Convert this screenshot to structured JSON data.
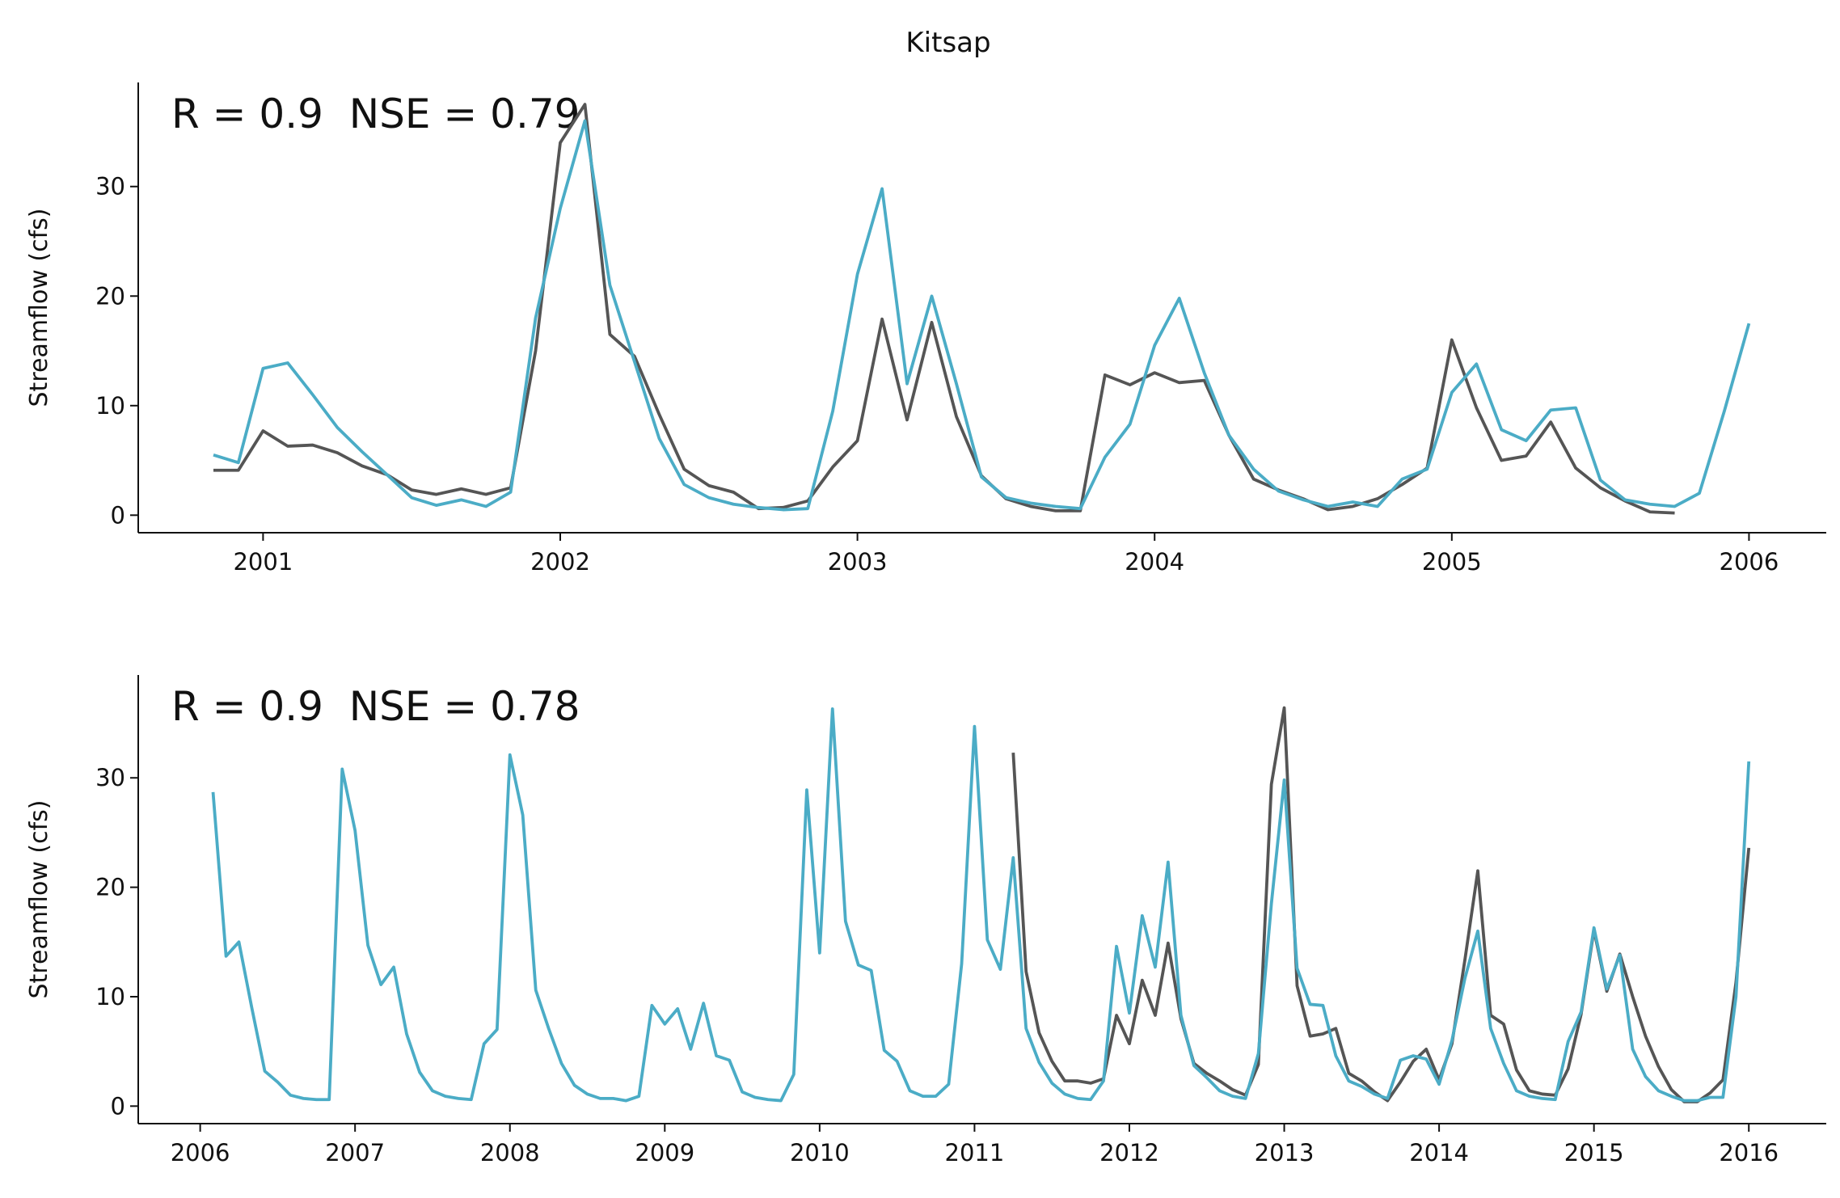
{
  "chart_data": [
    {
      "type": "line",
      "title": "Kitsap",
      "annotation": "R = 0.9  NSE = 0.79",
      "ylabel": "Streamflow (cfs)",
      "x": [
        2000.833,
        2000.917,
        2001,
        2001.083,
        2001.167,
        2001.25,
        2001.333,
        2001.417,
        2001.5,
        2001.583,
        2001.667,
        2001.75,
        2001.833,
        2001.917,
        2002,
        2002.083,
        2002.167,
        2002.25,
        2002.333,
        2002.417,
        2002.5,
        2002.583,
        2002.667,
        2002.75,
        2002.833,
        2002.917,
        2003,
        2003.083,
        2003.167,
        2003.25,
        2003.333,
        2003.417,
        2003.5,
        2003.583,
        2003.667,
        2003.75,
        2003.833,
        2003.917,
        2004,
        2004.083,
        2004.167,
        2004.25,
        2004.333,
        2004.417,
        2004.5,
        2004.583,
        2004.667,
        2004.75,
        2004.833,
        2004.917,
        2005,
        2005.083,
        2005.167,
        2005.25,
        2005.333,
        2005.417,
        2005.5,
        2005.583,
        2005.667,
        2005.75,
        2005.833,
        2005.917,
        2006
      ],
      "series": [
        {
          "color": "#555555",
          "values": [
            4.1,
            4.1,
            7.7,
            6.3,
            6.4,
            5.7,
            4.5,
            3.7,
            2.3,
            1.9,
            2.4,
            1.9,
            2.5,
            15,
            34,
            37.5,
            16.5,
            14.5,
            9.2,
            4.2,
            2.7,
            2.1,
            0.6,
            0.7,
            1.3,
            4.4,
            6.8,
            17.9,
            8.7,
            17.6,
            9.0,
            3.6,
            1.5,
            0.8,
            0.4,
            0.4,
            12.8,
            11.9,
            13.0,
            12.1,
            12.3,
            7.3,
            3.3,
            2.3,
            1.5,
            0.5,
            0.8,
            1.5,
            2.8,
            4.3,
            16.0,
            9.8,
            5.0,
            5.4,
            8.5,
            4.3,
            2.5,
            1.3,
            0.3,
            0.2,
            null,
            null,
            null
          ]
        },
        {
          "color": "#4bacc6",
          "values": [
            5.5,
            4.8,
            13.4,
            13.9,
            11.0,
            8.0,
            5.8,
            3.7,
            1.6,
            0.9,
            1.4,
            0.8,
            2.1,
            18,
            28,
            36,
            21,
            14,
            7,
            2.8,
            1.6,
            1.0,
            0.7,
            0.5,
            0.6,
            9.5,
            22,
            29.8,
            12,
            20,
            12,
            3.5,
            1.6,
            1.1,
            0.8,
            0.6,
            5.3,
            8.3,
            15.5,
            19.8,
            13,
            7.3,
            4.2,
            2.2,
            1.4,
            0.8,
            1.2,
            0.8,
            3.3,
            4.2,
            11.2,
            13.8,
            7.8,
            6.8,
            9.6,
            9.8,
            3.2,
            1.4,
            1.0,
            0.8,
            2.0,
            9.5,
            17.5
          ]
        }
      ],
      "xlim": [
        2000.58,
        2006.26
      ],
      "xticks": [
        2001,
        2002,
        2003,
        2004,
        2005,
        2006
      ],
      "ylim": [
        -1.6,
        39.5
      ],
      "yticks": [
        0,
        10,
        20,
        30
      ]
    },
    {
      "type": "line",
      "annotation": "R = 0.9  NSE = 0.78",
      "ylabel": "Streamflow (cfs)",
      "x": [
        2006.083,
        2006.167,
        2006.25,
        2006.333,
        2006.417,
        2006.5,
        2006.583,
        2006.667,
        2006.75,
        2006.833,
        2006.917,
        2007,
        2007.083,
        2007.167,
        2007.25,
        2007.333,
        2007.417,
        2007.5,
        2007.583,
        2007.667,
        2007.75,
        2007.833,
        2007.917,
        2008,
        2008.083,
        2008.167,
        2008.25,
        2008.333,
        2008.417,
        2008.5,
        2008.583,
        2008.667,
        2008.75,
        2008.833,
        2008.917,
        2009,
        2009.083,
        2009.167,
        2009.25,
        2009.333,
        2009.417,
        2009.5,
        2009.583,
        2009.667,
        2009.75,
        2009.833,
        2009.917,
        2010,
        2010.083,
        2010.167,
        2010.25,
        2010.333,
        2010.417,
        2010.5,
        2010.583,
        2010.667,
        2010.75,
        2010.833,
        2010.917,
        2011,
        2011.083,
        2011.167,
        2011.25,
        2011.333,
        2011.417,
        2011.5,
        2011.583,
        2011.667,
        2011.75,
        2011.833,
        2011.917,
        2012,
        2012.083,
        2012.167,
        2012.25,
        2012.333,
        2012.417,
        2012.5,
        2012.583,
        2012.667,
        2012.75,
        2012.833,
        2012.917,
        2013,
        2013.083,
        2013.167,
        2013.25,
        2013.333,
        2013.417,
        2013.5,
        2013.583,
        2013.667,
        2013.75,
        2013.833,
        2013.917,
        2014,
        2014.083,
        2014.167,
        2014.25,
        2014.333,
        2014.417,
        2014.5,
        2014.583,
        2014.667,
        2014.75,
        2014.833,
        2014.917,
        2015,
        2015.083,
        2015.167,
        2015.25,
        2015.333,
        2015.417,
        2015.5,
        2015.583,
        2015.667,
        2015.75,
        2015.833,
        2015.917,
        2016
      ],
      "series": [
        {
          "color": "#555555",
          "values": [
            null,
            null,
            null,
            null,
            null,
            null,
            null,
            null,
            null,
            null,
            null,
            null,
            null,
            null,
            null,
            null,
            null,
            null,
            null,
            null,
            null,
            null,
            null,
            null,
            null,
            null,
            null,
            null,
            null,
            null,
            null,
            null,
            null,
            null,
            null,
            null,
            null,
            null,
            null,
            null,
            null,
            null,
            null,
            null,
            null,
            null,
            null,
            null,
            null,
            null,
            null,
            null,
            null,
            null,
            null,
            null,
            null,
            null,
            null,
            null,
            null,
            null,
            32.3,
            12.3,
            6.7,
            4.1,
            2.3,
            2.3,
            2.1,
            2.5,
            8.3,
            5.7,
            11.5,
            8.3,
            14.9,
            8.0,
            3.9,
            3.0,
            2.3,
            1.5,
            1.0,
            3.8,
            29.4,
            36.4,
            11.0,
            6.4,
            6.6,
            7.1,
            3.0,
            2.3,
            1.3,
            0.5,
            2.2,
            4.1,
            5.2,
            2.4,
            5.7,
            13.4,
            21.5,
            8.3,
            7.5,
            3.3,
            1.4,
            1.1,
            1.0,
            3.4,
            8.4,
            16.1,
            10.5,
            13.9,
            10.0,
            6.4,
            3.6,
            1.5,
            0.4,
            0.4,
            1.2,
            2.4,
            11.3,
            23.6
          ]
        },
        {
          "color": "#4bacc6",
          "values": [
            28.7,
            13.7,
            15.0,
            9,
            3.2,
            2.2,
            1.0,
            0.7,
            0.6,
            0.6,
            30.8,
            25.2,
            14.7,
            11.1,
            12.7,
            6.6,
            3.1,
            1.4,
            0.9,
            0.7,
            0.6,
            5.7,
            7.0,
            32.1,
            26.6,
            10.6,
            7.1,
            3.9,
            1.9,
            1.1,
            0.7,
            0.7,
            0.5,
            0.9,
            9.2,
            7.5,
            8.9,
            5.2,
            9.4,
            4.6,
            4.2,
            1.3,
            0.8,
            0.6,
            0.5,
            2.9,
            28.9,
            14.0,
            36.3,
            16.9,
            12.9,
            12.4,
            5.1,
            4.1,
            1.4,
            0.9,
            0.9,
            2.0,
            13.0,
            34.7,
            15.2,
            12.5,
            22.7,
            7.1,
            4.0,
            2.1,
            1.1,
            0.7,
            0.6,
            2.3,
            14.6,
            8.5,
            17.4,
            12.7,
            22.3,
            8.3,
            3.7,
            2.6,
            1.4,
            0.9,
            0.7,
            4.8,
            18.5,
            29.8,
            12.6,
            9.3,
            9.2,
            4.6,
            2.3,
            1.8,
            1.1,
            0.7,
            4.2,
            4.6,
            4.3,
            2.0,
            6.0,
            11.7,
            16.0,
            7.1,
            3.9,
            1.4,
            0.9,
            0.7,
            0.6,
            5.9,
            8.6,
            16.3,
            10.7,
            13.8,
            5.2,
            2.7,
            1.4,
            0.9,
            0.5,
            0.5,
            0.8,
            0.8,
            10,
            31.5
          ]
        }
      ],
      "xlim": [
        2005.6,
        2016.5
      ],
      "xticks": [
        2006,
        2007,
        2008,
        2009,
        2010,
        2011,
        2012,
        2013,
        2014,
        2015,
        2016
      ],
      "ylim": [
        -1.6,
        39.4
      ],
      "yticks": [
        0,
        10,
        20,
        30
      ]
    }
  ]
}
